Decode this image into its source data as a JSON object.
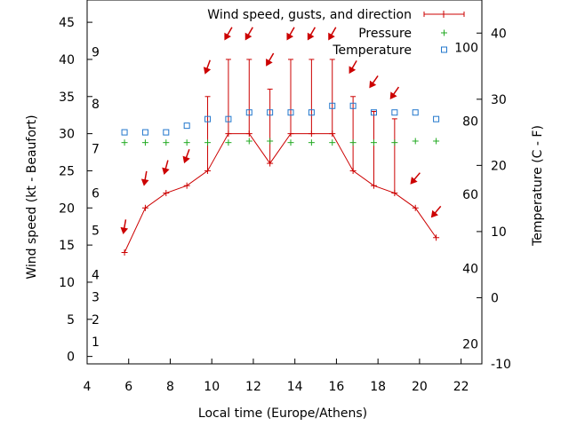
{
  "chart_data": {
    "type": "line",
    "xlabel": "Local time (Europe/Athens)",
    "ylabel": "Wind speed (kt - Beaufort)",
    "y2label": "Temperature (C - F)",
    "xlim": [
      4,
      23
    ],
    "ylim": [
      -1,
      48
    ],
    "y2lim": [
      -10,
      45
    ],
    "x_ticks": [
      4,
      6,
      8,
      10,
      12,
      14,
      16,
      18,
      20,
      22
    ],
    "y_ticks": [
      0,
      5,
      10,
      15,
      20,
      25,
      30,
      35,
      40,
      45
    ],
    "y2_ticks": [
      -10,
      0,
      10,
      20,
      30,
      40
    ],
    "fahrenheit_labels": [
      {
        "label": "20",
        "c": -7
      },
      {
        "label": "40",
        "c": 4.4
      },
      {
        "label": "60",
        "c": 15.6
      },
      {
        "label": "80",
        "c": 26.7
      },
      {
        "label": "100",
        "c": 37.8
      }
    ],
    "beaufort_labels": [
      {
        "label": "1",
        "kt": 2
      },
      {
        "label": "2",
        "kt": 5
      },
      {
        "label": "3",
        "kt": 8
      },
      {
        "label": "4",
        "kt": 11
      },
      {
        "label": "5",
        "kt": 17
      },
      {
        "label": "6",
        "kt": 22
      },
      {
        "label": "7",
        "kt": 28
      },
      {
        "label": "8",
        "kt": 34
      },
      {
        "label": "9",
        "kt": 41
      }
    ],
    "legend_position": "top-right",
    "series": [
      {
        "name": "Wind speed, gusts, and direction",
        "axis": "y",
        "color": "#cc0000",
        "x": [
          5.8,
          6.8,
          7.8,
          8.8,
          9.8,
          10.8,
          11.8,
          12.8,
          13.8,
          14.8,
          15.8,
          16.8,
          17.8,
          18.8,
          19.8,
          20.8
        ],
        "values": [
          14,
          20,
          22,
          23,
          25,
          30,
          30,
          26,
          30,
          30,
          30,
          25,
          23,
          22,
          20,
          16
        ],
        "gusts": [
          14,
          20,
          22,
          23,
          35,
          40,
          40,
          36,
          40,
          40,
          40,
          35,
          33,
          32,
          20,
          16
        ],
        "arrow_levels": [
          17.5,
          24,
          25.5,
          27,
          39,
          43.5,
          43.5,
          40,
          43.5,
          43.5,
          43.5,
          39,
          37,
          35.5,
          24,
          19.5
        ],
        "direction_deg": [
          10,
          10,
          15,
          20,
          20,
          30,
          30,
          30,
          30,
          30,
          30,
          30,
          35,
          35,
          40,
          40
        ]
      },
      {
        "name": "Pressure",
        "axis": "y",
        "color": "#22aa22",
        "x": [
          5.8,
          6.8,
          7.8,
          8.8,
          9.8,
          10.8,
          11.8,
          12.8,
          13.8,
          14.8,
          15.8,
          16.8,
          17.8,
          18.8,
          19.8,
          20.8
        ],
        "values": [
          28.8,
          28.8,
          28.8,
          28.8,
          28.8,
          28.8,
          29.0,
          29.0,
          28.8,
          28.8,
          28.8,
          28.8,
          28.8,
          28.8,
          29.0,
          29.0
        ]
      },
      {
        "name": "Temperature",
        "axis": "y2",
        "color": "#2277cc",
        "x": [
          5.8,
          6.8,
          7.8,
          8.8,
          9.8,
          10.8,
          11.8,
          12.8,
          13.8,
          14.8,
          15.8,
          16.8,
          17.8,
          18.8,
          19.8,
          20.8
        ],
        "values": [
          25,
          25,
          25,
          26,
          27,
          27,
          28,
          28,
          28,
          28,
          29,
          29,
          28,
          28,
          28,
          27
        ]
      }
    ]
  }
}
